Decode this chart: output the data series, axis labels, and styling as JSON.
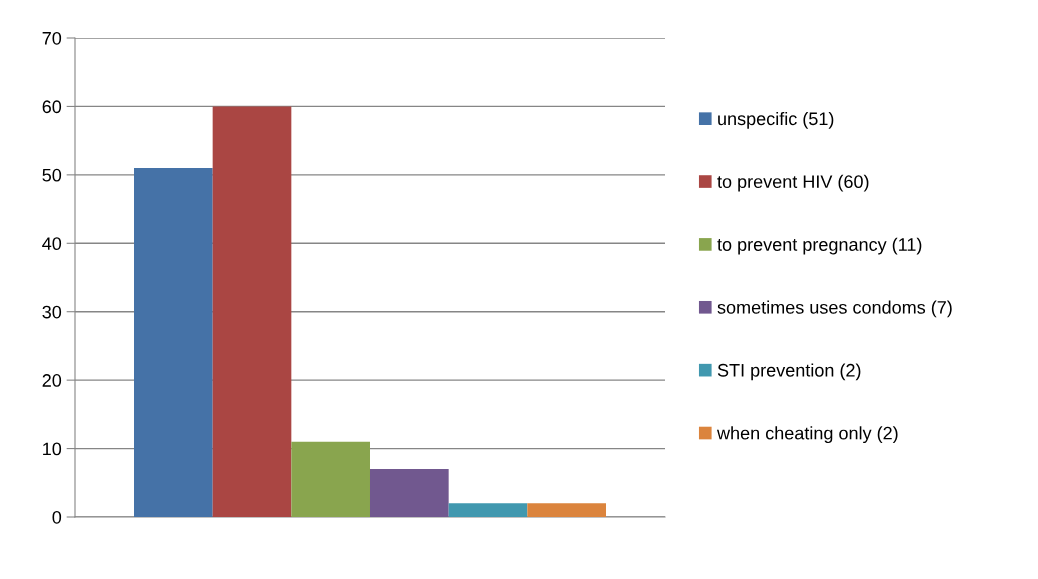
{
  "chart_data": {
    "type": "bar",
    "categories": [
      null
    ],
    "series": [
      {
        "name": "unspecific (51)",
        "color": "#4572a7",
        "values": [
          51
        ]
      },
      {
        "name": "to prevent HIV (60)",
        "color": "#aa4643",
        "values": [
          60
        ]
      },
      {
        "name": "to prevent pregnancy (11)",
        "color": "#89a54e",
        "values": [
          11
        ]
      },
      {
        "name": "sometimes uses condoms (7)",
        "color": "#71588f",
        "values": [
          7
        ]
      },
      {
        "name": "STI prevention (2)",
        "color": "#4198af",
        "values": [
          2
        ]
      },
      {
        "name": "when cheating only (2)",
        "color": "#db843d",
        "values": [
          2
        ]
      }
    ],
    "ylim": [
      0,
      70
    ],
    "yticks": [
      0,
      10,
      20,
      30,
      40,
      50,
      60,
      70
    ],
    "grid": "y",
    "legend": "right",
    "tick_labels": "y"
  }
}
